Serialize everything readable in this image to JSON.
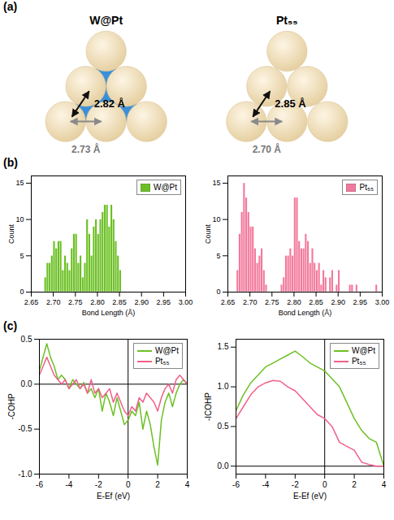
{
  "panel_labels": [
    "(a)",
    "(b)",
    "(c)"
  ],
  "diagram": {
    "structures": [
      {
        "title": "W@Pt",
        "core_color": "#3a8fd8",
        "bond_labels": {
          "diagonal": "2.82 Å",
          "horizontal": "2.73 Å"
        }
      },
      {
        "title": "Pt₅₅",
        "bond_labels": {
          "diagonal": "2.85 Å",
          "horizontal": "2.70 Å"
        }
      }
    ]
  },
  "chart_data": [
    {
      "type": "histogram",
      "xlabel": "Bond Length (Å)",
      "ylabel": "Count",
      "bins": [
        2.68,
        2.685,
        2.69,
        2.695,
        2.7,
        2.705,
        2.71,
        2.715,
        2.72,
        2.725,
        2.73,
        2.735,
        2.74,
        2.745,
        2.75,
        2.755,
        2.76,
        2.765,
        2.77,
        2.775,
        2.78,
        2.785,
        2.79,
        2.795,
        2.8,
        2.805,
        2.81,
        2.815,
        2.82,
        2.825,
        2.83,
        2.835,
        2.84,
        2.845,
        2.85,
        2.855
      ],
      "series": [
        {
          "name": "W@Pt",
          "color": "#6cc024",
          "values": [
            2,
            4,
            4,
            5,
            7,
            6,
            7,
            7,
            3,
            5,
            4,
            3,
            6,
            8,
            8,
            4,
            5,
            2,
            4,
            10,
            8,
            5,
            9,
            10,
            8,
            10,
            11,
            12,
            12,
            9,
            12,
            10,
            7,
            5,
            3
          ]
        }
      ],
      "xlim": [
        2.65,
        3.0
      ],
      "xticks": [
        {
          "value": 2.65,
          "label": "2.65"
        },
        {
          "value": 2.7,
          "label": "2.70"
        },
        2.75,
        {
          "value": 2.8,
          "label": "2.80"
        },
        2.85,
        {
          "value": 2.9,
          "label": "2.90"
        },
        2.95,
        {
          "value": 3,
          "label": "3.00"
        }
      ],
      "ylim": [
        0,
        16
      ],
      "yticks": [
        0,
        5,
        10,
        15
      ],
      "legend": "top-right"
    },
    {
      "type": "histogram",
      "xlabel": "Bond Length (Å)",
      "ylabel": "Count",
      "bins": [
        2.67,
        2.675,
        2.68,
        2.685,
        2.69,
        2.695,
        2.7,
        2.705,
        2.71,
        2.715,
        2.72,
        2.725,
        2.73,
        2.735,
        2.74,
        2.745,
        2.75,
        2.755,
        2.76,
        2.765,
        2.77,
        2.775,
        2.78,
        2.785,
        2.79,
        2.795,
        2.8,
        2.805,
        2.81,
        2.815,
        2.82,
        2.825,
        2.83,
        2.835,
        2.84,
        2.845,
        2.85,
        2.855,
        2.86,
        2.865,
        2.87,
        2.875,
        2.88,
        2.885,
        2.89,
        2.895,
        2.9,
        2.905,
        2.91,
        2.915,
        2.92,
        2.925,
        2.93,
        2.935,
        2.94,
        2.945,
        2.95,
        2.955,
        2.96,
        2.965,
        2.97,
        2.975,
        2.98,
        2.985,
        2.99
      ],
      "series": [
        {
          "name": "Pt₅₅",
          "color": "#f2799c",
          "values": [
            3,
            8,
            11,
            15,
            13,
            11,
            9,
            9,
            6,
            4,
            5,
            6,
            3,
            1,
            0,
            0,
            0,
            0,
            0,
            0,
            1,
            2,
            5,
            5,
            6,
            5,
            13,
            13,
            7,
            6,
            6,
            8,
            7,
            4,
            6,
            4,
            3,
            4,
            1,
            3,
            2,
            0,
            2,
            3,
            0,
            1,
            3,
            0,
            0,
            0,
            0,
            1,
            1,
            0,
            1,
            0,
            0,
            0,
            0,
            0,
            0,
            0,
            0,
            1
          ]
        }
      ],
      "xlim": [
        2.65,
        3.0
      ],
      "xticks": [
        {
          "value": 2.65,
          "label": "2.65"
        },
        {
          "value": 2.7,
          "label": "2.70"
        },
        2.75,
        {
          "value": 2.8,
          "label": "2.80"
        },
        2.85,
        {
          "value": 2.9,
          "label": "2.90"
        },
        2.95,
        {
          "value": 3,
          "label": "3.00"
        }
      ],
      "ylim": [
        0,
        16
      ],
      "yticks": [
        0,
        5,
        10,
        15
      ],
      "legend": "top-right"
    },
    {
      "type": "line",
      "xlabel": "E-Ef (eV)",
      "ylabel": "-COHP",
      "x": [
        -6,
        -5.75,
        -5.5,
        -5.25,
        -5,
        -4.75,
        -4.5,
        -4.25,
        -4,
        -3.75,
        -3.5,
        -3.25,
        -3,
        -2.75,
        -2.5,
        -2.25,
        -2,
        -1.75,
        -1.5,
        -1.25,
        -1,
        -0.75,
        -0.5,
        -0.25,
        0,
        0.25,
        0.5,
        0.75,
        1,
        1.25,
        1.5,
        1.75,
        2,
        2.25,
        2.5,
        2.75,
        3,
        3.25,
        3.5,
        3.75,
        4
      ],
      "series": [
        {
          "name": "W@Pt",
          "color": "#6cc024",
          "values": [
            0.15,
            0.3,
            0.45,
            0.3,
            0.2,
            0.05,
            0.1,
            0.05,
            -0.05,
            0.05,
            0,
            -0.05,
            0.02,
            -0.1,
            -0.05,
            -0.15,
            -0.05,
            -0.3,
            -0.1,
            -0.2,
            -0.35,
            -0.15,
            -0.3,
            -0.45,
            -0.4,
            -0.3,
            -0.35,
            -0.2,
            -0.5,
            -0.3,
            -0.45,
            -0.7,
            -0.9,
            -0.4,
            -0.2,
            -0.1,
            -0.25,
            -0.1,
            0,
            0.05,
            0
          ]
        },
        {
          "name": "Pt₅₅",
          "color": "#f0608a",
          "values": [
            0.1,
            0.2,
            0.3,
            0.2,
            0.1,
            0.05,
            0,
            0.05,
            -0.05,
            0,
            0.05,
            -0.05,
            0,
            -0.1,
            0.05,
            -0.1,
            -0.05,
            -0.15,
            -0.1,
            -0.05,
            -0.2,
            -0.1,
            -0.2,
            -0.3,
            -0.35,
            -0.25,
            -0.3,
            -0.15,
            -0.2,
            -0.1,
            -0.15,
            -0.2,
            -0.3,
            -0.15,
            -0.05,
            0,
            -0.1,
            0.05,
            0.1,
            0.05,
            0
          ]
        }
      ],
      "xlim": [
        -6,
        4
      ],
      "xticks": [
        -6,
        -4,
        -2,
        0,
        2,
        4
      ],
      "ylim": [
        -1,
        0.5
      ],
      "yticks": [
        {
          "value": -1,
          "label": "-1.0"
        },
        -0.5,
        {
          "value": 0,
          "label": "0.0"
        },
        0.5
      ],
      "legend": "top-right"
    },
    {
      "type": "line",
      "xlabel": "E-Ef (eV)",
      "ylabel": "-ICOHP",
      "x": [
        -6,
        -5.5,
        -5,
        -4.5,
        -4,
        -3.5,
        -3,
        -2.5,
        -2,
        -1.5,
        -1,
        -0.5,
        0,
        0.5,
        1,
        1.5,
        2,
        2.5,
        3,
        3.5,
        4
      ],
      "series": [
        {
          "name": "W@Pt",
          "color": "#6cc024",
          "values": [
            0.7,
            0.9,
            1.05,
            1.15,
            1.25,
            1.3,
            1.35,
            1.4,
            1.45,
            1.38,
            1.3,
            1.25,
            1.2,
            1.1,
            1.0,
            0.8,
            0.6,
            0.45,
            0.35,
            0.3,
            0
          ]
        },
        {
          "name": "Pt₅₅",
          "color": "#f0608a",
          "values": [
            0.6,
            0.75,
            0.9,
            1.0,
            1.05,
            1.08,
            1.07,
            1.0,
            0.95,
            0.85,
            0.75,
            0.65,
            0.6,
            0.5,
            0.3,
            0.25,
            0.2,
            0.05,
            0.02,
            0,
            0
          ]
        }
      ],
      "xlim": [
        -6,
        4
      ],
      "xticks": [
        -6,
        -4,
        -2,
        0,
        2,
        4
      ],
      "ylim": [
        -0.1,
        1.6
      ],
      "yticks": [
        {
          "value": 0,
          "label": "0.0"
        },
        0.5,
        {
          "value": 1,
          "label": "1.0"
        },
        1.5
      ],
      "legend": "top-right"
    }
  ]
}
